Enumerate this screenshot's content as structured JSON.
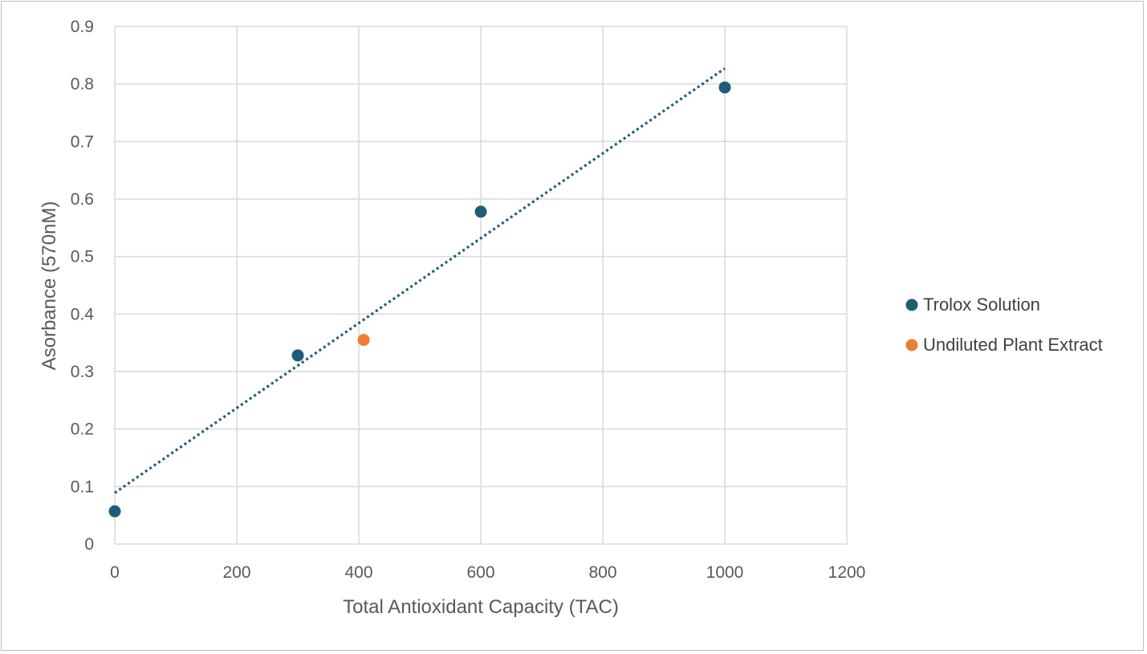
{
  "chart_data": {
    "type": "scatter",
    "title": "",
    "xlabel": "Total Antioxidant Capacity (TAC)",
    "ylabel": "Asorbance (570nM)",
    "xlim": [
      0,
      1200
    ],
    "ylim": [
      0,
      0.9
    ],
    "x_ticks": [
      0,
      200,
      400,
      600,
      800,
      1000,
      1200
    ],
    "y_ticks": [
      0,
      0.1,
      0.2,
      0.3,
      0.4,
      0.5,
      0.6,
      0.7,
      0.8,
      0.9
    ],
    "grid": true,
    "legend_position": "right",
    "series": [
      {
        "name": "Trolox Solution",
        "color": "#1f5c7a",
        "x": [
          0,
          300,
          600,
          1000
        ],
        "y": [
          0.057,
          0.328,
          0.578,
          0.794
        ]
      },
      {
        "name": "Undiluted Plant Extract",
        "color": "#ed7d31",
        "x": [
          408
        ],
        "y": [
          0.355
        ]
      }
    ],
    "trendline": {
      "series": "Trolox Solution",
      "type": "linear",
      "style": "dotted",
      "color": "#1f5c7a",
      "x": [
        0,
        1000
      ],
      "y": [
        0.089,
        0.827
      ]
    }
  }
}
